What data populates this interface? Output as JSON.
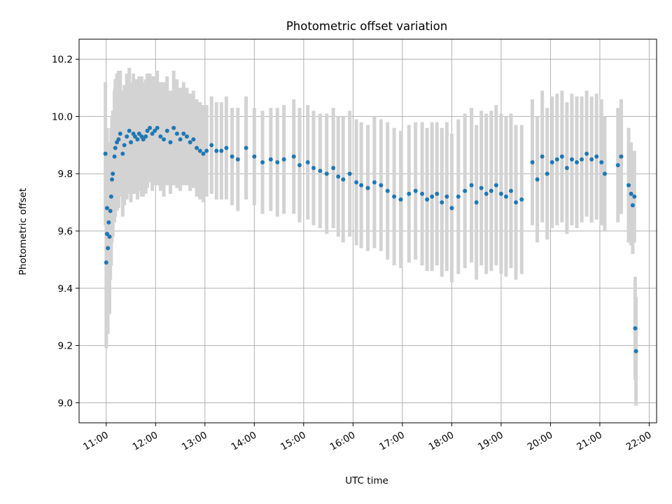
{
  "chart_data": {
    "type": "scatter",
    "title": "Photometric offset variation",
    "xlabel": "UTC time",
    "ylabel": "Photometric offset",
    "x_unit": "UTC time (HH:MM)",
    "xlim": [
      "10:27",
      "22:09"
    ],
    "ylim": [
      8.93,
      10.27
    ],
    "grid": true,
    "x_tick_labels": [
      "11:00",
      "12:00",
      "13:00",
      "14:00",
      "15:00",
      "16:00",
      "17:00",
      "18:00",
      "19:00",
      "20:00",
      "21:00",
      "22:00"
    ],
    "y_ticks": [
      9.0,
      9.2,
      9.4,
      9.6,
      9.8,
      10.0,
      10.2
    ],
    "y_tick_labels": [
      "9.0",
      "9.2",
      "9.4",
      "9.6",
      "9.8",
      "10.0",
      "10.2"
    ],
    "colors": {
      "points": "#1f77b4",
      "errorbars": "#d3d3d3",
      "grid": "#b0b0b0"
    },
    "series": [
      {
        "x": [
          "10:59",
          "11:00",
          "11:01",
          "11:01",
          "11:02",
          "11:03",
          "11:04",
          "11:05",
          "11:06",
          "11:07",
          "11:08",
          "11:10",
          "11:11",
          "11:13",
          "11:15",
          "11:17",
          "11:20",
          "11:22",
          "11:25",
          "11:28",
          "11:30",
          "11:33",
          "11:35",
          "11:38",
          "11:40",
          "11:43",
          "11:45",
          "11:48",
          "11:50",
          "11:53",
          "11:56",
          "11:59",
          "12:02",
          "12:06",
          "12:10",
          "12:14",
          "12:18",
          "12:22",
          "12:26",
          "12:30",
          "12:34",
          "12:38",
          "12:42",
          "12:46",
          "12:50",
          "12:54",
          "12:58",
          "13:02",
          "13:08",
          "13:14",
          "13:20",
          "13:26",
          "13:33",
          "13:40",
          "13:50",
          "14:00",
          "14:10",
          "14:20",
          "14:28",
          "14:36",
          "14:48",
          "14:55",
          "15:05",
          "15:12",
          "15:20",
          "15:28",
          "15:36",
          "15:42",
          "15:48",
          "15:56",
          "16:04",
          "16:10",
          "16:18",
          "16:26",
          "16:34",
          "16:42",
          "16:50",
          "16:58",
          "17:08",
          "17:16",
          "17:24",
          "17:30",
          "17:36",
          "17:42",
          "17:48",
          "17:54",
          "18:00",
          "18:08",
          "18:16",
          "18:24",
          "18:30",
          "18:36",
          "18:42",
          "18:48",
          "18:54",
          "19:00",
          "19:06",
          "19:12",
          "19:18",
          "19:25",
          "19:38",
          "19:44",
          "19:50",
          "19:56",
          "20:02",
          "20:08",
          "20:14",
          "20:20",
          "20:26",
          "20:32",
          "20:38",
          "20:44",
          "20:50",
          "20:56",
          "21:02",
          "21:06",
          "21:22",
          "21:26",
          "21:35",
          "21:38",
          "21:40",
          "21:42",
          "21:43",
          "21:44"
        ],
        "y": [
          9.87,
          9.49,
          9.59,
          9.68,
          9.54,
          9.63,
          9.58,
          9.67,
          9.72,
          9.78,
          9.8,
          9.86,
          9.89,
          9.91,
          9.92,
          9.94,
          9.87,
          9.9,
          9.93,
          9.95,
          9.91,
          9.94,
          9.93,
          9.92,
          9.94,
          9.93,
          9.92,
          9.93,
          9.95,
          9.96,
          9.94,
          9.95,
          9.96,
          9.93,
          9.92,
          9.95,
          9.91,
          9.96,
          9.94,
          9.92,
          9.94,
          9.93,
          9.91,
          9.92,
          9.89,
          9.88,
          9.87,
          9.88,
          9.9,
          9.88,
          9.88,
          9.89,
          9.86,
          9.85,
          9.89,
          9.86,
          9.84,
          9.85,
          9.84,
          9.85,
          9.86,
          9.83,
          9.84,
          9.82,
          9.81,
          9.8,
          9.82,
          9.79,
          9.78,
          9.8,
          9.77,
          9.76,
          9.75,
          9.77,
          9.76,
          9.74,
          9.72,
          9.71,
          9.73,
          9.74,
          9.73,
          9.71,
          9.72,
          9.73,
          9.7,
          9.72,
          9.68,
          9.72,
          9.74,
          9.76,
          9.7,
          9.75,
          9.73,
          9.74,
          9.76,
          9.73,
          9.72,
          9.74,
          9.7,
          9.71,
          9.84,
          9.78,
          9.86,
          9.8,
          9.84,
          9.85,
          9.86,
          9.82,
          9.85,
          9.84,
          9.85,
          9.87,
          9.85,
          9.86,
          9.84,
          9.8,
          9.83,
          9.86,
          9.76,
          9.73,
          9.69,
          9.72,
          9.26,
          9.18
        ],
        "yerr": [
          0.25,
          0.3,
          0.3,
          0.28,
          0.3,
          0.26,
          0.27,
          0.24,
          0.24,
          0.22,
          0.22,
          0.23,
          0.24,
          0.24,
          0.24,
          0.22,
          0.22,
          0.21,
          0.22,
          0.22,
          0.21,
          0.21,
          0.2,
          0.21,
          0.2,
          0.21,
          0.2,
          0.2,
          0.2,
          0.19,
          0.2,
          0.19,
          0.2,
          0.19,
          0.2,
          0.19,
          0.18,
          0.2,
          0.19,
          0.18,
          0.18,
          0.17,
          0.17,
          0.17,
          0.17,
          0.17,
          0.17,
          0.16,
          0.17,
          0.17,
          0.17,
          0.18,
          0.17,
          0.18,
          0.18,
          0.17,
          0.18,
          0.18,
          0.19,
          0.19,
          0.2,
          0.2,
          0.2,
          0.2,
          0.2,
          0.21,
          0.21,
          0.21,
          0.22,
          0.22,
          0.22,
          0.22,
          0.22,
          0.23,
          0.23,
          0.24,
          0.24,
          0.24,
          0.24,
          0.24,
          0.25,
          0.25,
          0.26,
          0.25,
          0.26,
          0.26,
          0.26,
          0.27,
          0.27,
          0.27,
          0.27,
          0.27,
          0.28,
          0.28,
          0.28,
          0.28,
          0.28,
          0.27,
          0.27,
          0.26,
          0.22,
          0.22,
          0.23,
          0.23,
          0.23,
          0.23,
          0.23,
          0.23,
          0.23,
          0.23,
          0.22,
          0.22,
          0.22,
          0.22,
          0.22,
          0.2,
          0.2,
          0.2,
          0.2,
          0.18,
          0.17,
          0.16,
          0.18,
          0.19
        ]
      }
    ]
  }
}
